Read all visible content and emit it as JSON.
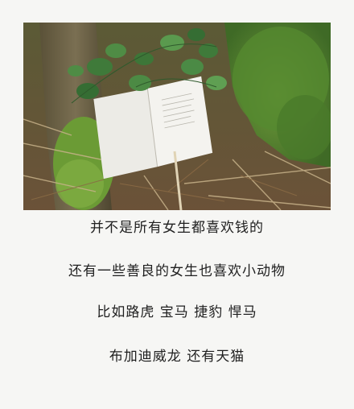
{
  "photo": {
    "subject": "open-book-on-forest-floor"
  },
  "caption": {
    "lines": [
      "并不是所有女生都喜欢钱的",
      "还有一些善良的女生也喜欢小动物",
      "比如路虎 宝马 捷豹 悍马",
      "布加迪威龙 还有天猫"
    ]
  }
}
